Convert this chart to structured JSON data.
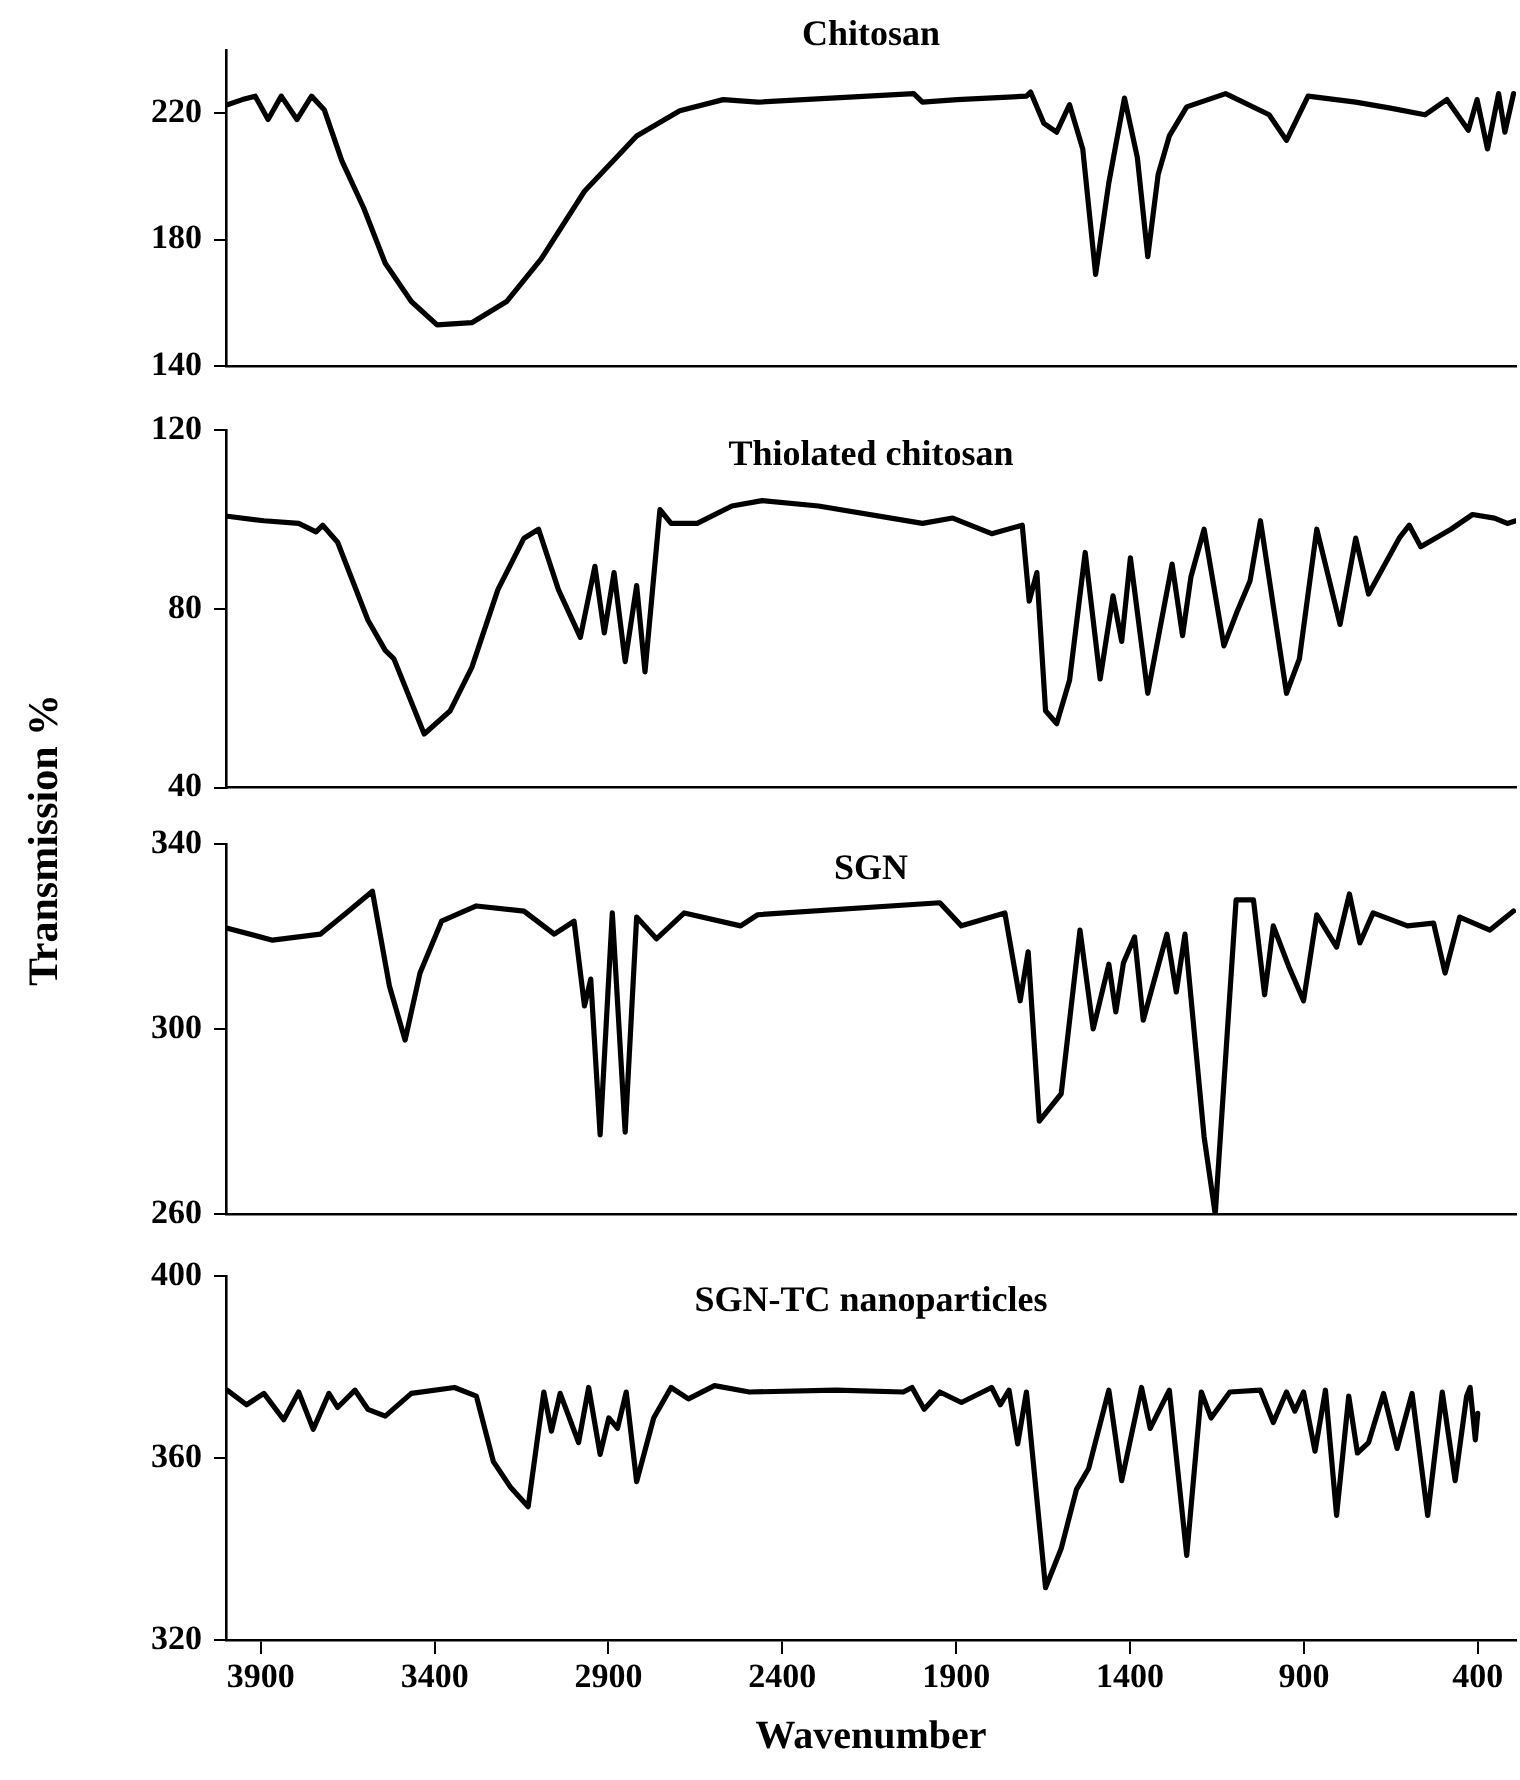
{
  "chart_data": [
    {
      "type": "line",
      "title": "Chitosan",
      "xlim": [
        4000,
        290
      ],
      "xticks": [
        3900,
        3400,
        2900,
        2400,
        1900,
        1400,
        900,
        400
      ],
      "ylim": [
        140,
        240
      ],
      "yticks": [
        140,
        180,
        220
      ],
      "tick_labels": "y",
      "marker": "none",
      "x": [
        3996,
        3953,
        3916,
        3879,
        3841,
        3796,
        3754,
        3717,
        3667,
        3604,
        3542,
        3467,
        3393,
        3293,
        3193,
        3094,
        2969,
        2819,
        2695,
        2570,
        2471,
        2022,
        1997,
        1897,
        1698,
        1686,
        1648,
        1611,
        1574,
        1536,
        1499,
        1461,
        1416,
        1379,
        1349,
        1319,
        1287,
        1237,
        1125,
        1000,
        950,
        888,
        751,
        651,
        552,
        489,
        427,
        402,
        372,
        340,
        322,
        297
      ],
      "series": [
        {
          "color": "#000000",
          "values": [
            222.7,
            224.3,
            225.4,
            218,
            225.4,
            218,
            225.4,
            221,
            205,
            190,
            172.5,
            160.4,
            153,
            153.7,
            160.4,
            173.8,
            195.3,
            212.8,
            220.8,
            224.3,
            223.5,
            226.2,
            223.5,
            224.3,
            225.4,
            226.7,
            216.8,
            214,
            222.7,
            208.7,
            169,
            198,
            224.8,
            206,
            174.6,
            200.7,
            212.8,
            222,
            226.2,
            219.5,
            211.4,
            225.4,
            223.5,
            221.6,
            219.5,
            224.3,
            214.6,
            224.3,
            208.7,
            226.2,
            214,
            226.2
          ]
        }
      ]
    },
    {
      "type": "line",
      "title": "Thiolated chitosan",
      "xlim": [
        4000,
        290
      ],
      "xticks": [
        3900,
        3400,
        2900,
        2400,
        1900,
        1400,
        900,
        400
      ],
      "ylim": [
        40,
        120
      ],
      "yticks": [
        40,
        80,
        120
      ],
      "tick_labels": "y",
      "marker": "none",
      "x": [
        3996,
        3891,
        3791,
        3741,
        3722,
        3679,
        3592,
        3542,
        3517,
        3430,
        3355,
        3293,
        3218,
        3143,
        3101,
        3044,
        2981,
        2939,
        2912,
        2884,
        2852,
        2819,
        2795,
        2752,
        2720,
        2645,
        2545,
        2458,
        2296,
        1997,
        1910,
        1798,
        1710,
        1690,
        1668,
        1643,
        1611,
        1574,
        1529,
        1486,
        1449,
        1424,
        1399,
        1349,
        1279,
        1249,
        1225,
        1187,
        1130,
        1092,
        1055,
        1025,
        950,
        913,
        863,
        796,
        751,
        714,
        626,
        597,
        564,
        477,
        415,
        352,
        315,
        290
      ],
      "series": [
        {
          "color": "#000000",
          "values": [
            100.7,
            99.7,
            99.1,
            97.2,
            98.7,
            94.9,
            77.5,
            70.7,
            68.8,
            52,
            57.2,
            66.9,
            84.3,
            95.8,
            97.8,
            84.3,
            73.6,
            89.5,
            74.6,
            88.1,
            68.2,
            85.2,
            65.9,
            102.2,
            99.1,
            99.1,
            103,
            104.2,
            103,
            99.1,
            100.3,
            96.8,
            98.7,
            81.7,
            88.1,
            57.2,
            54.3,
            64,
            92.6,
            64.3,
            82.9,
            72.7,
            91.4,
            61.1,
            90,
            74,
            87.1,
            97.8,
            71.7,
            79.4,
            86.2,
            99.7,
            61.1,
            68.8,
            97.8,
            76.5,
            95.8,
            83.3,
            95.8,
            98.7,
            93.9,
            97.8,
            101.1,
            100.3,
            99.1,
            99.7
          ]
        }
      ]
    },
    {
      "type": "line",
      "title": "SGN",
      "ylabel": "Transmission %",
      "xlim": [
        4000,
        290
      ],
      "xticks": [
        3900,
        3400,
        2900,
        2400,
        1900,
        1400,
        900,
        400
      ],
      "ylim": [
        260,
        340
      ],
      "yticks": [
        260,
        300,
        340
      ],
      "tick_labels": "y",
      "marker": "none",
      "x": [
        3996,
        3866,
        3729,
        3654,
        3579,
        3530,
        3485,
        3442,
        3380,
        3280,
        3143,
        3056,
        2999,
        2969,
        2951,
        2924,
        2889,
        2852,
        2819,
        2762,
        2682,
        2520,
        2471,
        1947,
        1885,
        1760,
        1716,
        1693,
        1661,
        1598,
        1544,
        1506,
        1461,
        1441,
        1419,
        1387,
        1362,
        1294,
        1267,
        1242,
        1187,
        1155,
        1095,
        1045,
        1013,
        988,
        943,
        901,
        863,
        806,
        769,
        739,
        701,
        602,
        527,
        494,
        452,
        365,
        297
      ],
      "series": [
        {
          "color": "#000000",
          "values": [
            321.8,
            319.2,
            320.5,
            325.1,
            329.8,
            309.3,
            297.6,
            312.1,
            323.3,
            326.6,
            325.5,
            320.5,
            323.3,
            305,
            310.8,
            277.1,
            325.1,
            277.7,
            324.2,
            319.5,
            325.1,
            322.3,
            324.7,
            327.3,
            322.3,
            325.1,
            306.1,
            316.7,
            280.1,
            286,
            321.4,
            300,
            314,
            303.7,
            314.3,
            319.9,
            301.9,
            320.5,
            308,
            320.5,
            276.7,
            260,
            327.9,
            327.9,
            307.4,
            322.3,
            313.4,
            306.1,
            324.7,
            317.7,
            329.2,
            318.6,
            325.1,
            322.3,
            322.9,
            312.1,
            324.2,
            321.4,
            325.5
          ]
        }
      ]
    },
    {
      "type": "line",
      "title": "SGN-TC nanoparticles",
      "xlabel": "Wavenumber",
      "xlim": [
        4000,
        290
      ],
      "xticks": [
        3900,
        3400,
        2900,
        2400,
        1900,
        1400,
        900,
        400
      ],
      "ylim": [
        320,
        400
      ],
      "yticks": [
        320,
        360,
        400
      ],
      "marker": "none",
      "x": [
        3996,
        3941,
        3891,
        3834,
        3791,
        3749,
        3704,
        3679,
        3629,
        3592,
        3542,
        3467,
        3343,
        3280,
        3231,
        3181,
        3131,
        3086,
        3064,
        3039,
        2986,
        2957,
        2924,
        2899,
        2874,
        2849,
        2819,
        2770,
        2720,
        2670,
        2595,
        2495,
        2246,
        2052,
        2027,
        1992,
        1947,
        1885,
        1798,
        1773,
        1748,
        1723,
        1698,
        1643,
        1598,
        1554,
        1519,
        1461,
        1424,
        1367,
        1342,
        1287,
        1237,
        1195,
        1167,
        1113,
        1025,
        988,
        950,
        926,
        901,
        868,
        838,
        806,
        771,
        746,
        714,
        671,
        632,
        589,
        544,
        502,
        465,
        432,
        422,
        407,
        400
      ],
      "series": [
        {
          "color": "#000000",
          "values": [
            374.9,
            371.7,
            374.2,
            368.4,
            374.5,
            366.3,
            374.2,
            371.1,
            374.9,
            370.7,
            369.2,
            374.2,
            375.5,
            373.6,
            359.2,
            353.5,
            349.3,
            374.5,
            365.9,
            374.2,
            363.4,
            375.5,
            360.8,
            368.8,
            366.5,
            374.5,
            354.8,
            368.8,
            375.5,
            373,
            375.9,
            374.5,
            374.9,
            374.5,
            375.5,
            370.7,
            374.5,
            372.2,
            375.5,
            371.7,
            374.9,
            363.1,
            374.5,
            331.5,
            340.1,
            353.1,
            357.7,
            374.9,
            355,
            375.5,
            366.5,
            374.9,
            338.6,
            374.5,
            368.8,
            374.5,
            374.9,
            367.8,
            374.5,
            370.3,
            374.5,
            361.5,
            374.9,
            347.4,
            373.6,
            361.1,
            363.4,
            374.2,
            362.1,
            374.2,
            347.4,
            374.5,
            355,
            373.6,
            375.5,
            364,
            369.8
          ]
        }
      ]
    }
  ]
}
